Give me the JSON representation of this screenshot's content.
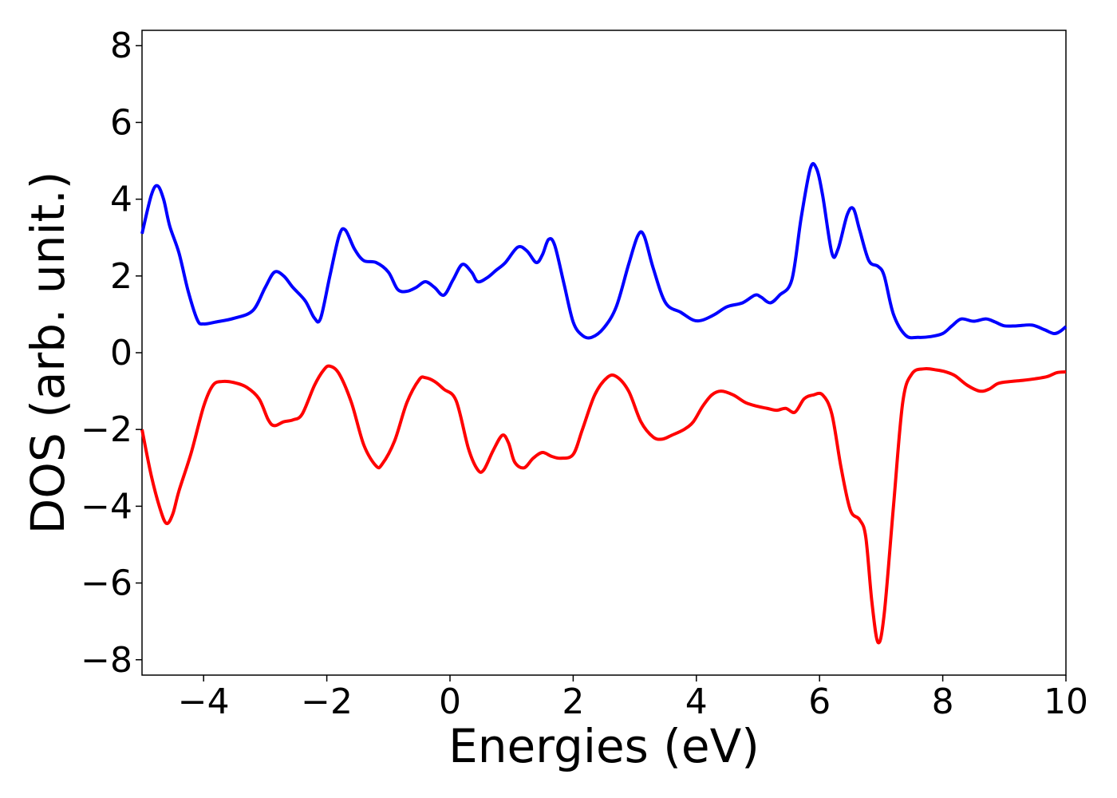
{
  "chart_data": {
    "type": "line",
    "xlabel": "Energies (eV)",
    "ylabel": "DOS (arb. unit.)",
    "xlim": [
      -5,
      10
    ],
    "ylim": [
      -8.4,
      8.4
    ],
    "xticks": [
      -4,
      -2,
      0,
      2,
      4,
      6,
      8,
      10
    ],
    "xtick_labels": [
      "−4",
      "−2",
      "0",
      "2",
      "4",
      "6",
      "8",
      "10"
    ],
    "yticks": [
      8,
      6,
      4,
      2,
      0,
      -2,
      -4,
      -6,
      -8
    ],
    "ytick_labels": [
      "8",
      "6",
      "4",
      "2",
      "0",
      "−2",
      "−4",
      "−6",
      "−8"
    ],
    "grid": false,
    "legend": "none",
    "series": [
      {
        "color": "#0000ff",
        "points": [
          [
            -5.0,
            3.1
          ],
          [
            -4.85,
            4.1
          ],
          [
            -4.75,
            4.35
          ],
          [
            -4.65,
            4.0
          ],
          [
            -4.55,
            3.3
          ],
          [
            -4.4,
            2.6
          ],
          [
            -4.25,
            1.6
          ],
          [
            -4.1,
            0.85
          ],
          [
            -4.0,
            0.75
          ],
          [
            -3.8,
            0.8
          ],
          [
            -3.5,
            0.9
          ],
          [
            -3.2,
            1.1
          ],
          [
            -3.0,
            1.7
          ],
          [
            -2.85,
            2.1
          ],
          [
            -2.7,
            2.0
          ],
          [
            -2.55,
            1.7
          ],
          [
            -2.35,
            1.35
          ],
          [
            -2.2,
            0.9
          ],
          [
            -2.1,
            0.9
          ],
          [
            -1.95,
            2.0
          ],
          [
            -1.8,
            3.05
          ],
          [
            -1.7,
            3.2
          ],
          [
            -1.55,
            2.7
          ],
          [
            -1.4,
            2.4
          ],
          [
            -1.2,
            2.35
          ],
          [
            -1.0,
            2.1
          ],
          [
            -0.85,
            1.65
          ],
          [
            -0.7,
            1.6
          ],
          [
            -0.55,
            1.7
          ],
          [
            -0.4,
            1.85
          ],
          [
            -0.25,
            1.7
          ],
          [
            -0.1,
            1.5
          ],
          [
            0.05,
            1.9
          ],
          [
            0.2,
            2.3
          ],
          [
            0.35,
            2.1
          ],
          [
            0.45,
            1.85
          ],
          [
            0.6,
            1.95
          ],
          [
            0.75,
            2.15
          ],
          [
            0.9,
            2.35
          ],
          [
            1.1,
            2.75
          ],
          [
            1.25,
            2.65
          ],
          [
            1.4,
            2.35
          ],
          [
            1.5,
            2.55
          ],
          [
            1.6,
            2.95
          ],
          [
            1.7,
            2.8
          ],
          [
            1.85,
            1.8
          ],
          [
            2.0,
            0.8
          ],
          [
            2.15,
            0.45
          ],
          [
            2.3,
            0.4
          ],
          [
            2.5,
            0.65
          ],
          [
            2.7,
            1.2
          ],
          [
            2.9,
            2.3
          ],
          [
            3.05,
            3.05
          ],
          [
            3.15,
            3.05
          ],
          [
            3.3,
            2.2
          ],
          [
            3.5,
            1.3
          ],
          [
            3.75,
            1.05
          ],
          [
            3.95,
            0.85
          ],
          [
            4.1,
            0.85
          ],
          [
            4.3,
            1.0
          ],
          [
            4.5,
            1.2
          ],
          [
            4.75,
            1.3
          ],
          [
            4.95,
            1.5
          ],
          [
            5.05,
            1.45
          ],
          [
            5.2,
            1.3
          ],
          [
            5.35,
            1.5
          ],
          [
            5.55,
            1.9
          ],
          [
            5.7,
            3.5
          ],
          [
            5.85,
            4.8
          ],
          [
            5.95,
            4.8
          ],
          [
            6.05,
            4.1
          ],
          [
            6.2,
            2.6
          ],
          [
            6.3,
            2.7
          ],
          [
            6.45,
            3.6
          ],
          [
            6.55,
            3.75
          ],
          [
            6.65,
            3.2
          ],
          [
            6.8,
            2.4
          ],
          [
            6.95,
            2.25
          ],
          [
            7.05,
            2.0
          ],
          [
            7.2,
            1.0
          ],
          [
            7.4,
            0.45
          ],
          [
            7.6,
            0.4
          ],
          [
            7.8,
            0.42
          ],
          [
            8.0,
            0.5
          ],
          [
            8.15,
            0.7
          ],
          [
            8.3,
            0.88
          ],
          [
            8.5,
            0.82
          ],
          [
            8.7,
            0.88
          ],
          [
            8.85,
            0.8
          ],
          [
            9.0,
            0.7
          ],
          [
            9.2,
            0.7
          ],
          [
            9.45,
            0.72
          ],
          [
            9.65,
            0.6
          ],
          [
            9.8,
            0.5
          ],
          [
            9.9,
            0.55
          ],
          [
            10.0,
            0.68
          ]
        ]
      },
      {
        "color": "#ff0000",
        "points": [
          [
            -5.0,
            -2.0
          ],
          [
            -4.85,
            -3.2
          ],
          [
            -4.7,
            -4.1
          ],
          [
            -4.6,
            -4.45
          ],
          [
            -4.5,
            -4.2
          ],
          [
            -4.4,
            -3.6
          ],
          [
            -4.2,
            -2.6
          ],
          [
            -4.0,
            -1.4
          ],
          [
            -3.85,
            -0.85
          ],
          [
            -3.7,
            -0.75
          ],
          [
            -3.5,
            -0.78
          ],
          [
            -3.3,
            -0.9
          ],
          [
            -3.1,
            -1.2
          ],
          [
            -2.95,
            -1.75
          ],
          [
            -2.85,
            -1.9
          ],
          [
            -2.7,
            -1.8
          ],
          [
            -2.55,
            -1.75
          ],
          [
            -2.4,
            -1.6
          ],
          [
            -2.2,
            -0.85
          ],
          [
            -2.05,
            -0.45
          ],
          [
            -1.95,
            -0.35
          ],
          [
            -1.8,
            -0.55
          ],
          [
            -1.6,
            -1.3
          ],
          [
            -1.4,
            -2.4
          ],
          [
            -1.2,
            -2.95
          ],
          [
            -1.1,
            -2.9
          ],
          [
            -0.9,
            -2.3
          ],
          [
            -0.7,
            -1.3
          ],
          [
            -0.5,
            -0.7
          ],
          [
            -0.4,
            -0.65
          ],
          [
            -0.25,
            -0.75
          ],
          [
            -0.1,
            -0.95
          ],
          [
            0.1,
            -1.25
          ],
          [
            0.3,
            -2.5
          ],
          [
            0.45,
            -3.05
          ],
          [
            0.55,
            -3.05
          ],
          [
            0.7,
            -2.55
          ],
          [
            0.85,
            -2.15
          ],
          [
            0.95,
            -2.35
          ],
          [
            1.05,
            -2.85
          ],
          [
            1.2,
            -3.0
          ],
          [
            1.35,
            -2.75
          ],
          [
            1.5,
            -2.6
          ],
          [
            1.65,
            -2.7
          ],
          [
            1.8,
            -2.75
          ],
          [
            2.0,
            -2.65
          ],
          [
            2.15,
            -2.0
          ],
          [
            2.35,
            -1.1
          ],
          [
            2.55,
            -0.65
          ],
          [
            2.7,
            -0.62
          ],
          [
            2.9,
            -1.0
          ],
          [
            3.1,
            -1.8
          ],
          [
            3.3,
            -2.2
          ],
          [
            3.45,
            -2.25
          ],
          [
            3.6,
            -2.15
          ],
          [
            3.8,
            -2.0
          ],
          [
            3.95,
            -1.8
          ],
          [
            4.1,
            -1.4
          ],
          [
            4.25,
            -1.1
          ],
          [
            4.4,
            -1.0
          ],
          [
            4.6,
            -1.1
          ],
          [
            4.8,
            -1.3
          ],
          [
            5.0,
            -1.4
          ],
          [
            5.15,
            -1.45
          ],
          [
            5.3,
            -1.5
          ],
          [
            5.45,
            -1.45
          ],
          [
            5.6,
            -1.55
          ],
          [
            5.75,
            -1.2
          ],
          [
            5.9,
            -1.1
          ],
          [
            6.05,
            -1.1
          ],
          [
            6.2,
            -1.6
          ],
          [
            6.35,
            -3.0
          ],
          [
            6.5,
            -4.1
          ],
          [
            6.65,
            -4.35
          ],
          [
            6.75,
            -4.8
          ],
          [
            6.85,
            -6.5
          ],
          [
            6.95,
            -7.55
          ],
          [
            7.05,
            -6.8
          ],
          [
            7.2,
            -4.0
          ],
          [
            7.35,
            -1.3
          ],
          [
            7.5,
            -0.55
          ],
          [
            7.7,
            -0.42
          ],
          [
            7.9,
            -0.45
          ],
          [
            8.05,
            -0.5
          ],
          [
            8.2,
            -0.6
          ],
          [
            8.4,
            -0.85
          ],
          [
            8.6,
            -1.0
          ],
          [
            8.75,
            -0.95
          ],
          [
            8.9,
            -0.8
          ],
          [
            9.1,
            -0.75
          ],
          [
            9.3,
            -0.72
          ],
          [
            9.5,
            -0.68
          ],
          [
            9.7,
            -0.62
          ],
          [
            9.85,
            -0.52
          ],
          [
            10.0,
            -0.5
          ]
        ]
      }
    ]
  }
}
